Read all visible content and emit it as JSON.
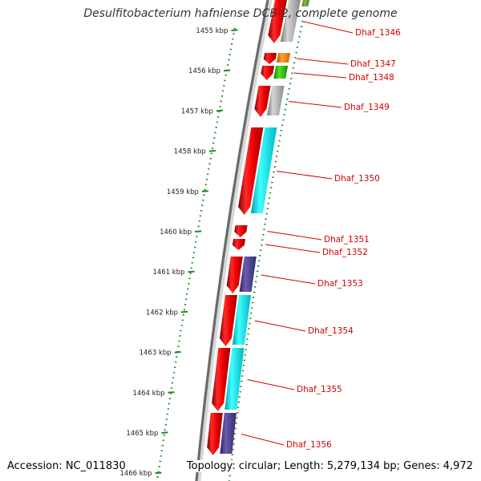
{
  "title": "Desulfitobacterium hafniense DCB-2, complete genome",
  "accession": "Accession: NC_011830",
  "topology": "Topology: circular; Length: 5,279,134 bp; Genes: 4,972",
  "ruler": [
    {
      "label": "1455 kbp"
    },
    {
      "label": "1456 kbp"
    },
    {
      "label": "1457 kbp"
    },
    {
      "label": "1458 kbp"
    },
    {
      "label": "1459 kbp"
    },
    {
      "label": "1460 kbp"
    },
    {
      "label": "1461 kbp"
    },
    {
      "label": "1462 kbp"
    },
    {
      "label": "1463 kbp"
    },
    {
      "label": "1464 kbp"
    },
    {
      "label": "1465 kbp"
    },
    {
      "label": "1466 kbp"
    }
  ],
  "genes": [
    {
      "name": "Dhaf_1346",
      "color": "#a0a0a0"
    },
    {
      "name": "Dhaf_1347",
      "color": "#ff8c00"
    },
    {
      "name": "Dhaf_1348",
      "color": "#22bb00"
    },
    {
      "name": "Dhaf_1349",
      "color": "#a0a0a0"
    },
    {
      "name": "Dhaf_1350",
      "color": "#00e5e5"
    },
    {
      "name": "Dhaf_1351",
      "color": "#ee0000"
    },
    {
      "name": "Dhaf_1352",
      "color": "#ee0000"
    },
    {
      "name": "Dhaf_1353",
      "color": "#4b3c8c"
    },
    {
      "name": "Dhaf_1354",
      "color": "#00e5e5"
    },
    {
      "name": "Dhaf_1355",
      "color": "#00e5e5"
    },
    {
      "name": "Dhaf_1356",
      "color": "#4b3c8c"
    }
  ]
}
